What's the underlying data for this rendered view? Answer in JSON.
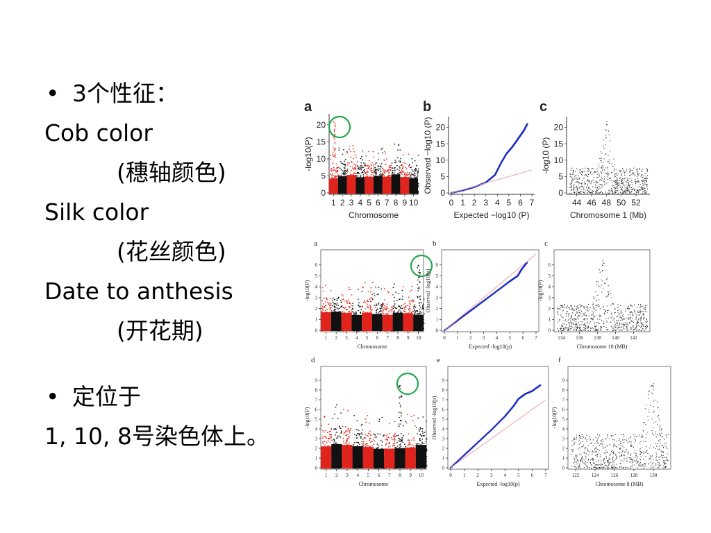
{
  "slide": {
    "bullet_glyph": "•",
    "lines": [
      "3个性征：",
      "Cob color",
      "(穗轴颜色)",
      "Silk color",
      "(花丝颜色)",
      "Date to anthesis",
      "(开花期)",
      "定位于",
      "1, 10, 8号染色体上。"
    ]
  },
  "chart_data": [
    {
      "panel": "a",
      "type": "scatter",
      "xlabel": "Chromosome",
      "ylabel": "-log10(P)",
      "x_ticks": [
        "1",
        "2",
        "3",
        "4",
        "5",
        "6",
        "7",
        "8",
        "9",
        "10"
      ],
      "y_ticks": [
        "0",
        "5",
        "10",
        "15",
        "20"
      ],
      "ylim": [
        0,
        22
      ],
      "series_colors": [
        "#e0241b",
        "#111111"
      ],
      "peak": {
        "chromosome": "1",
        "value": 21
      },
      "highlight": "circled peak on chromosome 1"
    },
    {
      "panel": "b",
      "type": "scatter",
      "xlabel": "Expected −log10 (P)",
      "ylabel": "Observed −log10 (P)",
      "x_ticks": [
        "0",
        "1",
        "2",
        "3",
        "4",
        "5",
        "6",
        "7"
      ],
      "y_ticks": [
        "0",
        "5",
        "10",
        "15",
        "20"
      ],
      "xlim": [
        0,
        7
      ],
      "ylim": [
        0,
        22
      ],
      "points": [
        [
          0,
          0
        ],
        [
          1,
          0.8
        ],
        [
          2,
          1.8
        ],
        [
          3,
          3.2
        ],
        [
          3.8,
          5.5
        ],
        [
          4.3,
          9
        ],
        [
          4.8,
          12
        ],
        [
          5.3,
          14
        ],
        [
          5.7,
          16
        ],
        [
          6,
          17.5
        ],
        [
          6.3,
          19
        ],
        [
          6.6,
          21
        ]
      ],
      "reference_line": "y = x"
    },
    {
      "panel": "c",
      "type": "scatter",
      "xlabel": "Chromosome 1 (Mb)",
      "ylabel": "-log10 (P)",
      "x_ticks": [
        "44",
        "46",
        "48",
        "50",
        "52"
      ],
      "y_ticks": [
        "0",
        "5",
        "10",
        "15",
        "20"
      ],
      "xlim": [
        43,
        53.5
      ],
      "ylim": [
        0,
        22
      ],
      "peak": {
        "x": 48,
        "value": 21
      }
    },
    {
      "panel": "a",
      "type": "scatter",
      "xlabel": "Chromosome",
      "ylabel": "-log10(P)",
      "x_ticks": [
        "1",
        "2",
        "3",
        "4",
        "5",
        "6",
        "7",
        "8",
        "9",
        "10"
      ],
      "y_ticks": [
        "0",
        "1",
        "2",
        "3",
        "4",
        "5",
        "6"
      ],
      "ylim": [
        0,
        7
      ],
      "series_colors": [
        "#e0241b",
        "#111111"
      ],
      "peak": {
        "chromosome": "10",
        "value": 6
      },
      "highlight": "circled peak on chromosome 10"
    },
    {
      "panel": "b",
      "type": "scatter",
      "xlabel": "Expected -log10(p)",
      "ylabel": "Observed -log10(p)",
      "x_ticks": [
        "0",
        "1",
        "2",
        "3",
        "4",
        "5",
        "6",
        "7"
      ],
      "y_ticks": [
        "0",
        "1",
        "2",
        "3",
        "4",
        "5",
        "6"
      ],
      "xlim": [
        0,
        7
      ],
      "ylim": [
        0,
        7
      ],
      "points": [
        [
          0,
          0
        ],
        [
          1,
          0.9
        ],
        [
          2,
          1.8
        ],
        [
          3,
          2.7
        ],
        [
          4,
          3.6
        ],
        [
          5,
          4.5
        ],
        [
          5.6,
          5
        ],
        [
          5.9,
          5.6
        ],
        [
          6.3,
          6.2
        ]
      ],
      "reference_line": "y = x"
    },
    {
      "panel": "c",
      "type": "scatter",
      "xlabel": "Chromosome 10 (MB)",
      "ylabel": "-log10(P)",
      "x_ticks": [
        "134",
        "136",
        "138",
        "140",
        "142"
      ],
      "y_ticks": [
        "0",
        "1",
        "2",
        "3",
        "4",
        "5",
        "6"
      ],
      "xlim": [
        133.5,
        143.5
      ],
      "ylim": [
        0,
        7
      ],
      "peak": {
        "x": 138.5,
        "value": 6
      }
    },
    {
      "panel": "d",
      "type": "scatter",
      "xlabel": "Chromosome",
      "ylabel": "-log10(P)",
      "x_ticks": [
        "1",
        "2",
        "3",
        "4",
        "5",
        "6",
        "7",
        "8",
        "9",
        "10"
      ],
      "y_ticks": [
        "0",
        "1",
        "2",
        "3",
        "4",
        "5",
        "6",
        "7",
        "8",
        "9"
      ],
      "ylim": [
        0,
        10
      ],
      "series_colors": [
        "#e0241b",
        "#111111"
      ],
      "peak": {
        "chromosome": "8",
        "value": 8.5
      },
      "highlight": "circled peak on chromosome 8"
    },
    {
      "panel": "e",
      "type": "scatter",
      "xlabel": "Expected -log10(p)",
      "ylabel": "Observed -log10(p)",
      "x_ticks": [
        "0",
        "1",
        "2",
        "3",
        "4",
        "5",
        "6",
        "7"
      ],
      "y_ticks": [
        "0",
        "1",
        "2",
        "3",
        "4",
        "5",
        "6",
        "7",
        "8",
        "9"
      ],
      "xlim": [
        0,
        7
      ],
      "ylim": [
        0,
        10
      ],
      "points": [
        [
          0,
          0
        ],
        [
          1,
          1.3
        ],
        [
          2,
          2.6
        ],
        [
          3,
          3.9
        ],
        [
          4,
          5.3
        ],
        [
          4.6,
          6.3
        ],
        [
          5,
          7.1
        ],
        [
          5.5,
          7.6
        ],
        [
          6,
          7.9
        ],
        [
          6.6,
          8.5
        ]
      ],
      "reference_line": "y = x"
    },
    {
      "panel": "f",
      "type": "scatter",
      "xlabel": "Chromosome 8 (MB)",
      "ylabel": "-log10(P)",
      "x_ticks": [
        "122",
        "124",
        "126",
        "128",
        "130"
      ],
      "y_ticks": [
        "0",
        "1",
        "2",
        "3",
        "4",
        "5",
        "6",
        "7",
        "8",
        "9"
      ],
      "xlim": [
        121.5,
        131.5
      ],
      "ylim": [
        0,
        10
      ],
      "peak": {
        "x": 129.8,
        "value": 8.5
      }
    }
  ]
}
